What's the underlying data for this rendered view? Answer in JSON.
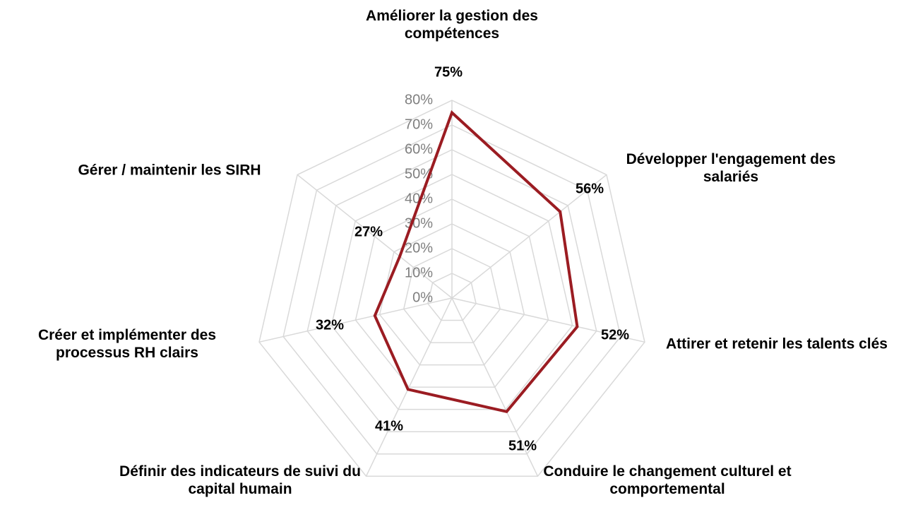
{
  "chart_data": {
    "type": "radar",
    "categories": [
      "Améliorer la gestion des compétences",
      "Développer l'engagement des salariés",
      "Attirer et retenir les talents clés",
      "Conduire le changement culturel et comportemental",
      "Définir des indicateurs de suivi du capital humain",
      "Créer et implémenter des processus RH clairs",
      "Gérer / maintenir les SIRH"
    ],
    "values": [
      75,
      56,
      52,
      51,
      41,
      32,
      27
    ],
    "value_labels": [
      "75%",
      "56%",
      "52%",
      "51%",
      "41%",
      "32%",
      "27%"
    ],
    "color": "#9b1c22",
    "ylim": [
      0,
      80
    ],
    "yticks": [
      {
        "value": 0,
        "label": "0%"
      },
      {
        "value": 10,
        "label": "10%"
      },
      {
        "value": 20,
        "label": "20%"
      },
      {
        "value": 30,
        "label": "30%"
      },
      {
        "value": 40,
        "label": "40%"
      },
      {
        "value": 50,
        "label": "50%"
      },
      {
        "value": 60,
        "label": "60%"
      },
      {
        "value": 70,
        "label": "70%"
      },
      {
        "value": 80,
        "label": "80%"
      }
    ],
    "grid": true
  }
}
